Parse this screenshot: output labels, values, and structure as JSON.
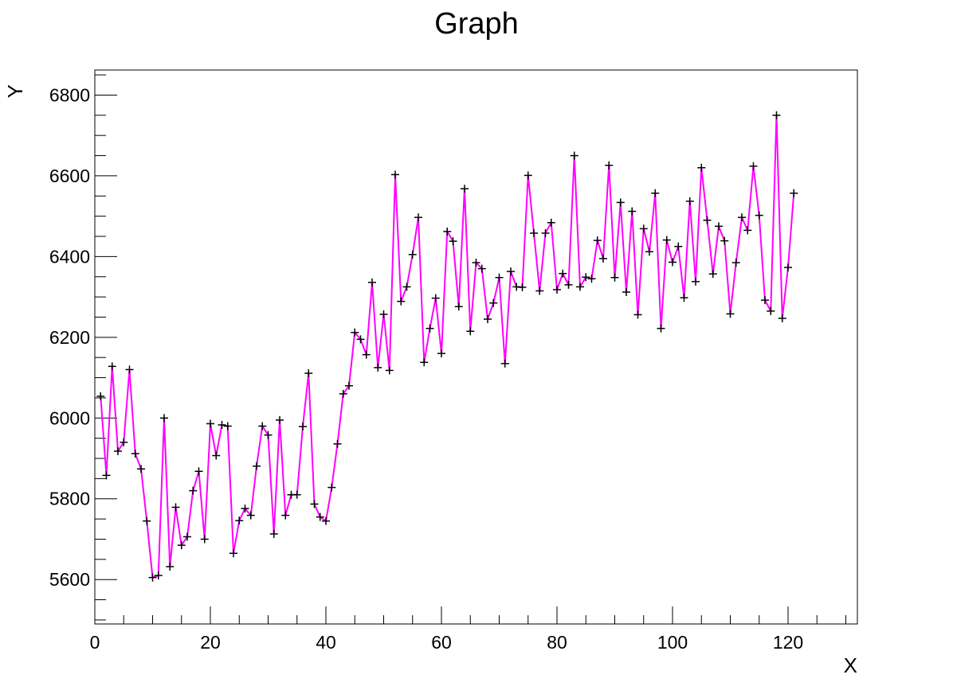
{
  "chart_data": {
    "type": "line",
    "title": "Graph",
    "xlabel": "X",
    "ylabel": "Y",
    "xlim": [
      0,
      132
    ],
    "ylim": [
      5490,
      6862
    ],
    "xticks": [
      0,
      20,
      40,
      60,
      80,
      100,
      120
    ],
    "yticks": [
      5600,
      5800,
      6000,
      6200,
      6400,
      6600,
      6800
    ],
    "grid": false,
    "legend": "none",
    "line_color": "#ff00ff",
    "marker_color": "#000000",
    "marker": "cross",
    "series": [
      {
        "x": [
          1,
          2,
          3,
          4,
          5,
          6,
          7,
          8,
          9,
          10,
          11,
          12,
          13,
          14,
          15,
          16,
          17,
          18,
          19,
          20,
          21,
          22,
          23,
          24,
          25,
          26,
          27,
          28,
          29,
          30,
          31,
          32,
          33,
          34,
          35,
          36,
          37,
          38,
          39,
          40,
          41,
          42,
          43,
          44,
          45,
          46,
          47,
          48,
          49,
          50,
          51,
          52,
          53,
          54,
          55,
          56,
          57,
          58,
          59,
          60,
          61,
          62,
          63,
          64,
          65,
          66,
          67,
          68,
          69,
          70,
          71,
          72,
          73,
          74,
          75,
          76,
          77,
          78,
          79,
          80,
          81,
          82,
          83,
          84,
          85,
          86,
          87,
          88,
          89,
          90,
          91,
          92,
          93,
          94,
          95,
          96,
          97,
          98,
          99,
          100,
          101,
          102,
          103,
          104,
          105,
          106,
          107,
          108,
          109,
          110,
          111,
          112,
          113,
          114,
          115,
          116,
          117,
          118,
          119,
          120,
          121
        ],
        "y": [
          6054,
          5858,
          6128,
          5918,
          5940,
          6120,
          5912,
          5874,
          5745,
          5605,
          5610,
          6000,
          5632,
          5779,
          5685,
          5706,
          5820,
          5868,
          5700,
          5986,
          5907,
          5983,
          5980,
          5665,
          5746,
          5776,
          5759,
          5881,
          5980,
          5958,
          5713,
          5995,
          5759,
          5810,
          5810,
          5979,
          6111,
          5787,
          5755,
          5745,
          5828,
          5936,
          6060,
          6080,
          6212,
          6195,
          6157,
          6336,
          6125,
          6257,
          6118,
          6603,
          6289,
          6325,
          6405,
          6497,
          6138,
          6222,
          6297,
          6160,
          6462,
          6438,
          6276,
          6568,
          6215,
          6385,
          6370,
          6245,
          6285,
          6348,
          6135,
          6363,
          6325,
          6324,
          6601,
          6458,
          6315,
          6458,
          6484,
          6318,
          6358,
          6330,
          6650,
          6325,
          6349,
          6345,
          6440,
          6395,
          6626,
          6348,
          6534,
          6312,
          6512,
          6256,
          6469,
          6412,
          6557,
          6222,
          6441,
          6386,
          6425,
          6298,
          6537,
          6338,
          6620,
          6490,
          6357,
          6475,
          6439,
          6258,
          6385,
          6497,
          6465,
          6624,
          6502,
          6292,
          6265,
          6750,
          6247,
          6373,
          6557
        ]
      }
    ]
  }
}
